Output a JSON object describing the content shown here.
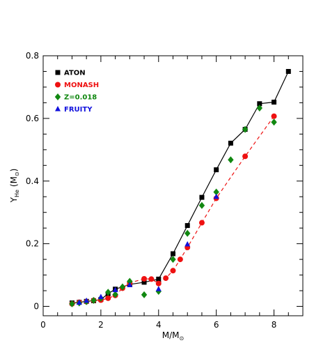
{
  "chart_data": {
    "type": "scatter",
    "xlabel": "M/M",
    "xlabel_sub": "⊙",
    "ylabel": "Y",
    "ylabel_sub": "He",
    "ylabel_unit": "(M",
    "ylabel_unit_sub": "⊙",
    "ylabel_unit_close": ")",
    "xlim": [
      0,
      9
    ],
    "ylim": [
      -0.03,
      0.8
    ],
    "xticks": [
      0,
      2,
      4,
      6,
      8
    ],
    "xtick_labels": [
      "0",
      "2",
      "4",
      "6",
      "8"
    ],
    "yticks": [
      0,
      0.2,
      0.4,
      0.6,
      0.8
    ],
    "ytick_labels": [
      "0",
      "0.2",
      "0.4",
      "0.6",
      "0.8"
    ],
    "legend_position": "top-left",
    "series": [
      {
        "name": "ATON",
        "color": "#000000",
        "marker": "square",
        "line": "solid",
        "x": [
          1.0,
          1.25,
          1.5,
          1.75,
          2.0,
          2.25,
          2.5,
          3.0,
          3.5,
          4.0,
          4.5,
          5.0,
          5.5,
          6.0,
          6.5,
          7.0,
          7.5,
          8.0,
          8.5
        ],
        "y": [
          0.011,
          0.013,
          0.016,
          0.018,
          0.022,
          0.04,
          0.055,
          0.07,
          0.077,
          0.087,
          0.168,
          0.258,
          0.348,
          0.436,
          0.521,
          0.565,
          0.647,
          0.652,
          0.75
        ]
      },
      {
        "name": "MONASH",
        "color": "#ee1111",
        "marker": "circle",
        "line": "dashed",
        "x": [
          1.0,
          1.25,
          1.5,
          1.75,
          2.0,
          2.25,
          2.5,
          2.75,
          3.0,
          3.5,
          3.75,
          4.0,
          4.25,
          4.5,
          4.75,
          5.0,
          5.5,
          6.0,
          7.0,
          8.0
        ],
        "y": [
          0.008,
          0.013,
          0.015,
          0.019,
          0.02,
          0.026,
          0.035,
          0.058,
          0.075,
          0.088,
          0.087,
          0.073,
          0.09,
          0.114,
          0.15,
          0.188,
          0.267,
          0.345,
          0.479,
          0.607
        ]
      },
      {
        "name": "Z=0.018",
        "color": "#118811",
        "marker": "diamond",
        "line": "none",
        "x": [
          1.0,
          1.25,
          1.5,
          1.75,
          2.0,
          2.25,
          2.5,
          2.75,
          3.0,
          3.5,
          4.0,
          4.5,
          5.0,
          5.5,
          6.0,
          6.5,
          7.0,
          7.5,
          8.0
        ],
        "y": [
          0.008,
          0.011,
          0.015,
          0.019,
          0.026,
          0.045,
          0.038,
          0.062,
          0.08,
          0.037,
          0.048,
          0.15,
          0.233,
          0.322,
          0.365,
          0.468,
          0.565,
          0.633,
          0.588
        ]
      },
      {
        "name": "FRUITY",
        "color": "#1111dd",
        "marker": "triangle",
        "line": "none",
        "x": [
          1.25,
          1.5,
          2.0,
          2.5,
          3.0,
          4.0,
          5.0,
          6.0
        ],
        "y": [
          0.012,
          0.018,
          0.03,
          0.052,
          0.068,
          0.055,
          0.198,
          0.35
        ]
      }
    ]
  }
}
